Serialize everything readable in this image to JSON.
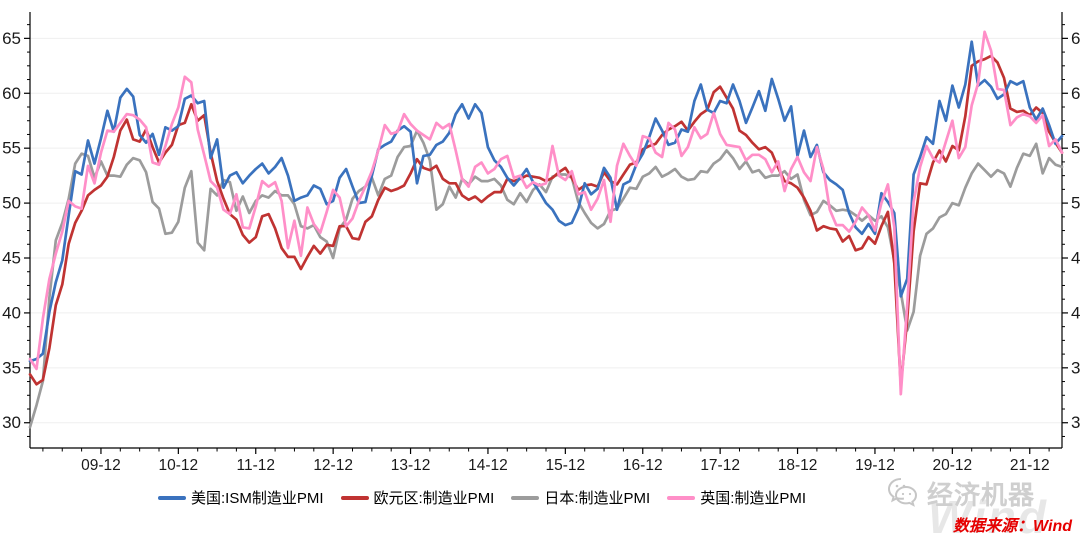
{
  "page": {
    "background": "#ffffff"
  },
  "chart_data": {
    "type": "line",
    "title": "",
    "x_frequency": "monthly",
    "x_start": "2009-01",
    "x_end": "2022-05",
    "x_tick_labels": [
      "09-12",
      "10-12",
      "11-12",
      "12-12",
      "13-12",
      "14-12",
      "15-12",
      "16-12",
      "17-12",
      "18-12",
      "19-12",
      "20-12",
      "21-12"
    ],
    "yticks": [
      30,
      35,
      40,
      45,
      50,
      55,
      60,
      65
    ],
    "ylim": [
      27.7,
      67.4
    ],
    "grid": "horizontal-light",
    "legend_position": "bottom",
    "series": [
      {
        "name": "美国:ISM制造业PMI",
        "color": "#3A72BE",
        "values": [
          35.6,
          35.8,
          36.3,
          40.1,
          42.8,
          44.8,
          48.9,
          52.9,
          52.6,
          55.7,
          53.6,
          55.9,
          58.4,
          56.5,
          59.6,
          60.4,
          59.7,
          56.2,
          55.5,
          56.3,
          54.4,
          56.9,
          56.6,
          57.0,
          59.5,
          59.8,
          59.1,
          59.3,
          54.1,
          55.8,
          51.4,
          52.5,
          52.8,
          51.8,
          52.5,
          53.1,
          53.6,
          52.7,
          53.3,
          54.1,
          52.5,
          50.2,
          50.5,
          50.7,
          51.6,
          51.3,
          49.9,
          50.2,
          52.3,
          53.1,
          51.5,
          50.0,
          50.1,
          52.5,
          54.9,
          55.3,
          55.6,
          56.6,
          57.0,
          56.5,
          51.8,
          54.3,
          54.4,
          55.3,
          55.6,
          56.4,
          58.1,
          59.0,
          57.7,
          59.0,
          58.2,
          55.1,
          53.9,
          53.3,
          52.3,
          51.6,
          52.3,
          53.1,
          51.9,
          51.0,
          50.0,
          49.4,
          48.4,
          48.0,
          48.2,
          49.5,
          51.8,
          50.8,
          51.3,
          53.2,
          52.3,
          49.4,
          51.7,
          52.0,
          53.5,
          54.5,
          56.0,
          57.7,
          56.6,
          55.3,
          55.5,
          56.7,
          56.5,
          59.3,
          60.8,
          58.5,
          58.2,
          59.3,
          59.1,
          60.8,
          59.3,
          57.3,
          58.7,
          60.2,
          58.4,
          61.3,
          59.5,
          57.5,
          58.8,
          54.3,
          56.6,
          54.2,
          55.3,
          52.8,
          52.1,
          51.7,
          51.2,
          49.1,
          47.8,
          47.2,
          48.1,
          47.2,
          50.9,
          50.1,
          49.1,
          41.5,
          43.1,
          52.6,
          54.2,
          56.0,
          55.4,
          59.3,
          57.5,
          60.7,
          58.7,
          60.8,
          64.7,
          60.7,
          61.2,
          60.6,
          59.5,
          59.9,
          61.1,
          60.8,
          61.1,
          58.7,
          57.6,
          58.6,
          57.1,
          55.4,
          56.1
        ]
      },
      {
        "name": "欧元区:制造业PMI",
        "color": "#C03332",
        "values": [
          34.4,
          33.5,
          33.9,
          36.8,
          40.7,
          42.6,
          46.3,
          48.2,
          49.3,
          50.7,
          51.2,
          51.6,
          52.4,
          54.2,
          56.6,
          57.6,
          55.8,
          55.6,
          56.7,
          55.1,
          53.7,
          54.6,
          55.3,
          57.1,
          57.3,
          59.0,
          57.5,
          58.0,
          54.6,
          52.0,
          50.4,
          49.0,
          48.5,
          47.1,
          46.4,
          46.9,
          48.8,
          49.0,
          47.7,
          45.9,
          45.1,
          45.1,
          44.0,
          45.1,
          46.1,
          45.4,
          46.2,
          46.1,
          47.9,
          47.9,
          46.8,
          46.7,
          48.3,
          48.8,
          50.3,
          51.4,
          51.1,
          51.3,
          51.6,
          52.7,
          54.0,
          53.2,
          53.0,
          53.4,
          52.2,
          51.8,
          51.8,
          50.7,
          50.3,
          50.6,
          50.1,
          50.6,
          51.0,
          51.0,
          52.2,
          52.0,
          52.2,
          52.5,
          52.4,
          52.3,
          52.0,
          52.3,
          52.8,
          53.2,
          52.3,
          51.2,
          51.6,
          51.7,
          51.5,
          52.8,
          52.0,
          51.7,
          52.6,
          53.5,
          53.7,
          54.9,
          55.2,
          55.4,
          56.2,
          56.7,
          57.0,
          57.4,
          56.6,
          57.4,
          58.1,
          58.5,
          60.1,
          60.6,
          59.6,
          58.6,
          56.6,
          56.2,
          55.5,
          54.9,
          55.1,
          54.6,
          53.2,
          52.0,
          51.8,
          51.4,
          50.5,
          49.3,
          47.5,
          47.9,
          47.7,
          47.6,
          46.5,
          47.0,
          45.7,
          45.9,
          46.9,
          46.3,
          47.9,
          49.2,
          44.5,
          33.4,
          39.4,
          47.4,
          51.8,
          51.7,
          53.7,
          54.8,
          53.8,
          55.2,
          54.8,
          57.9,
          62.5,
          62.9,
          63.1,
          63.4,
          62.8,
          61.4,
          58.6,
          58.3,
          58.4,
          58.0,
          58.7,
          58.2,
          56.5,
          55.5,
          54.6
        ]
      },
      {
        "name": "日本:制造业PMI",
        "color": "#9C9C9C",
        "values": [
          29.6,
          31.6,
          33.8,
          41.4,
          46.6,
          48.2,
          50.4,
          53.6,
          54.5,
          54.3,
          52.3,
          53.8,
          52.5,
          52.5,
          52.4,
          53.5,
          54.1,
          53.9,
          52.8,
          50.1,
          49.5,
          47.2,
          47.3,
          48.3,
          51.4,
          52.9,
          46.4,
          45.7,
          51.3,
          50.7,
          52.1,
          51.9,
          49.3,
          50.6,
          49.1,
          50.2,
          50.7,
          50.5,
          51.1,
          50.7,
          50.7,
          49.9,
          47.9,
          47.7,
          48.0,
          46.9,
          46.5,
          45.0,
          47.7,
          48.5,
          50.4,
          51.1,
          51.5,
          52.3,
          50.7,
          52.2,
          52.5,
          54.2,
          55.1,
          55.2,
          56.6,
          55.5,
          53.9,
          49.4,
          49.9,
          51.5,
          50.5,
          52.2,
          51.7,
          52.4,
          52.0,
          52.0,
          52.2,
          51.6,
          50.3,
          49.9,
          50.9,
          50.1,
          51.2,
          51.7,
          51.0,
          52.4,
          52.6,
          52.6,
          52.3,
          50.1,
          49.1,
          48.2,
          47.7,
          48.1,
          49.3,
          49.5,
          50.4,
          51.4,
          51.3,
          52.4,
          52.7,
          53.3,
          52.4,
          52.7,
          53.1,
          52.4,
          52.1,
          52.2,
          52.9,
          52.8,
          53.6,
          54.0,
          54.8,
          54.1,
          53.1,
          53.8,
          52.8,
          53.0,
          52.3,
          52.5,
          52.5,
          52.9,
          52.2,
          52.6,
          50.3,
          48.9,
          49.2,
          50.2,
          49.8,
          49.3,
          49.4,
          49.3,
          48.9,
          48.4,
          48.9,
          48.4,
          48.8,
          47.8,
          44.8,
          41.9,
          38.4,
          40.1,
          45.2,
          47.2,
          47.7,
          48.7,
          49.0,
          50.0,
          49.8,
          51.4,
          52.7,
          53.6,
          53.0,
          52.4,
          53.0,
          52.7,
          51.5,
          53.2,
          54.5,
          54.3,
          55.4,
          52.7,
          54.1,
          53.5,
          53.3
        ]
      },
      {
        "name": "英国:制造业PMI",
        "color": "#FF8FC8",
        "values": [
          35.8,
          34.9,
          39.5,
          43.1,
          45.4,
          47.4,
          50.2,
          49.7,
          49.5,
          53.4,
          51.8,
          54.6,
          56.6,
          56.5,
          57.3,
          58.1,
          58.0,
          57.6,
          56.9,
          53.7,
          53.5,
          55.2,
          57.2,
          58.7,
          61.5,
          61.0,
          56.7,
          54.4,
          52.0,
          51.4,
          49.4,
          49.0,
          50.8,
          47.8,
          47.7,
          49.7,
          52.0,
          51.5,
          51.9,
          50.2,
          45.9,
          48.4,
          45.2,
          49.6,
          48.1,
          47.3,
          49.2,
          51.2,
          50.5,
          47.9,
          48.6,
          50.2,
          51.5,
          52.9,
          54.8,
          57.1,
          56.3,
          56.5,
          58.1,
          57.2,
          56.6,
          56.2,
          55.8,
          57.3,
          56.8,
          57.2,
          54.8,
          52.2,
          51.5,
          53.3,
          53.7,
          52.7,
          53.1,
          54.0,
          54.3,
          52.3,
          52.5,
          51.4,
          51.9,
          51.6,
          51.8,
          55.2,
          52.5,
          52.1,
          52.9,
          50.8,
          51.0,
          49.4,
          50.4,
          52.1,
          48.3,
          53.4,
          55.4,
          54.3,
          53.4,
          56.1,
          55.9,
          54.6,
          54.2,
          57.3,
          56.7,
          54.3,
          55.1,
          56.9,
          55.9,
          56.3,
          58.2,
          56.3,
          55.3,
          55.2,
          55.1,
          53.9,
          54.4,
          54.4,
          54.0,
          52.8,
          53.8,
          51.1,
          53.1,
          54.2,
          52.8,
          52.0,
          55.1,
          53.1,
          49.4,
          48.0,
          48.0,
          47.4,
          48.3,
          49.6,
          48.9,
          47.5,
          50.0,
          51.7,
          47.8,
          32.6,
          40.7,
          50.1,
          53.3,
          55.2,
          54.1,
          53.7,
          55.6,
          57.5,
          54.1,
          55.1,
          58.9,
          60.9,
          65.6,
          63.9,
          60.4,
          60.3,
          57.1,
          57.8,
          58.1,
          57.9,
          57.3,
          58.0,
          55.2,
          55.8,
          54.6
        ]
      }
    ]
  },
  "footer": {
    "watermark_text": "经济机器",
    "wind_ghost": "Wind",
    "source_label": "数据来源：Wind",
    "source_color": "#E60000"
  }
}
